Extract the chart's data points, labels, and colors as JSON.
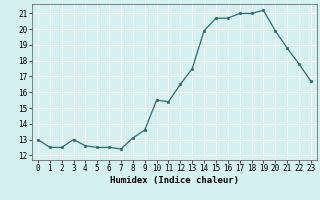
{
  "x": [
    0,
    1,
    2,
    3,
    4,
    5,
    6,
    7,
    8,
    9,
    10,
    11,
    12,
    13,
    14,
    15,
    16,
    17,
    18,
    19,
    20,
    21,
    22,
    23
  ],
  "y": [
    13.0,
    12.5,
    12.5,
    13.0,
    12.6,
    12.5,
    12.5,
    12.4,
    13.1,
    13.6,
    15.5,
    15.4,
    16.5,
    17.5,
    19.9,
    20.7,
    20.7,
    21.0,
    21.0,
    21.2,
    19.9,
    18.8,
    17.8,
    16.7
  ],
  "xlabel": "Humidex (Indice chaleur)",
  "xlim": [
    -0.5,
    23.5
  ],
  "ylim": [
    11.7,
    21.6
  ],
  "yticks": [
    12,
    13,
    14,
    15,
    16,
    17,
    18,
    19,
    20,
    21
  ],
  "xticks": [
    0,
    1,
    2,
    3,
    4,
    5,
    6,
    7,
    8,
    9,
    10,
    11,
    12,
    13,
    14,
    15,
    16,
    17,
    18,
    19,
    20,
    21,
    22,
    23
  ],
  "line_color": "#2d6e6e",
  "marker_color": "#2d6e6e",
  "bg_color": "#d4f0f0",
  "grid_color": "#ffffff",
  "label_fontsize": 6.5,
  "tick_fontsize": 5.5
}
